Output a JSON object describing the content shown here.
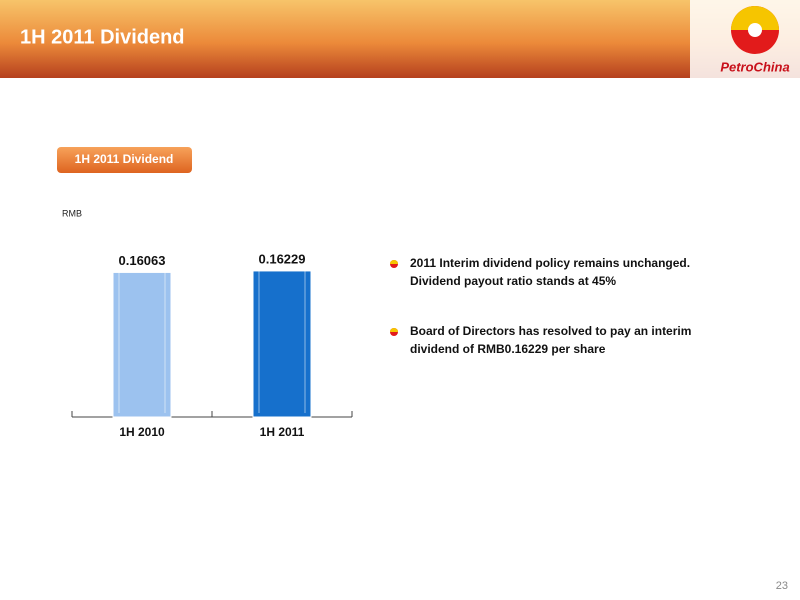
{
  "header": {
    "title": "1H 2011 Dividend",
    "logo": "PetroChina"
  },
  "chart_data": {
    "type": "bar",
    "title": "1H 2011 Dividend",
    "y_label": "RMB",
    "categories": [
      "1H 2010",
      "1H 2011"
    ],
    "values": [
      0.16063,
      0.16229
    ],
    "colors": [
      "#9cc2ef",
      "#1670cc"
    ],
    "ylim": [
      0,
      0.18
    ]
  },
  "bullets": [
    "2011 Interim dividend policy remains unchanged. Dividend payout ratio stands at 45%",
    "Board of Directors has resolved to pay an interim dividend of RMB0.16229 per share"
  ],
  "page_number": 23
}
